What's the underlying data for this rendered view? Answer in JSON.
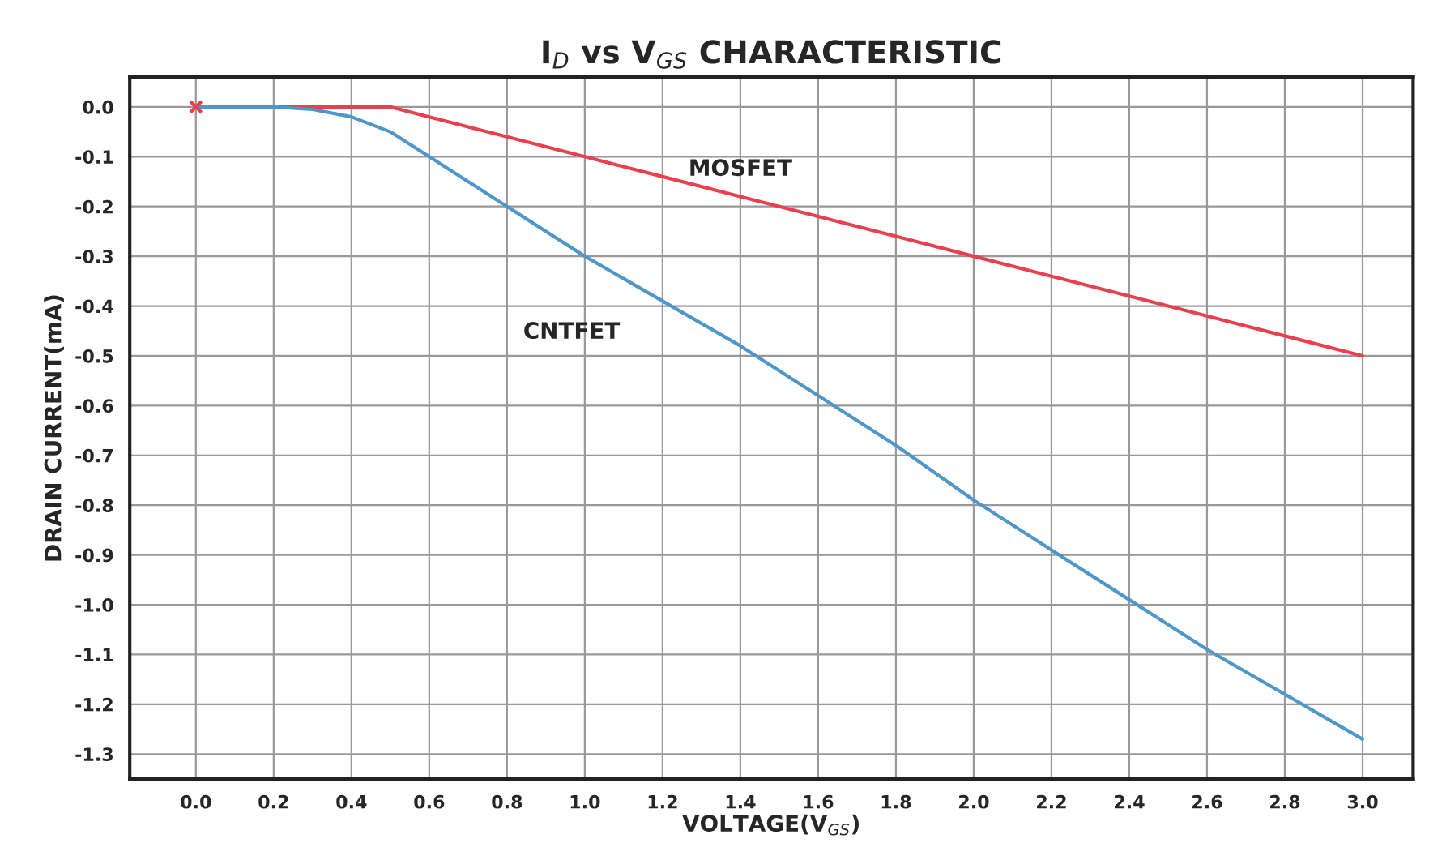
{
  "chart_data": {
    "type": "line",
    "title": "I$_{D}$ vs V$_{GS}$ CHARACTERISTIC",
    "xlabel": "VOLTAGE(V$_{GS}$)",
    "ylabel": "DRAIN CURRENT(mA)",
    "series": [
      {
        "name": "MOSFET",
        "color": "#e8404f",
        "x": [
          0,
          0.2,
          0.4,
          0.5,
          0.6,
          0.8,
          1.0,
          1.2,
          1.4,
          1.6,
          1.8,
          2.0,
          2.2,
          2.4,
          2.6,
          2.8,
          3.0
        ],
        "values": [
          0,
          0,
          0,
          0,
          -0.02,
          -0.06,
          -0.1,
          -0.14,
          -0.18,
          -0.22,
          -0.26,
          -0.3,
          -0.34,
          -0.38,
          -0.42,
          -0.46,
          -0.5
        ]
      },
      {
        "name": "CNTFET",
        "color": "#4f97c9",
        "x": [
          0,
          0.2,
          0.3,
          0.4,
          0.5,
          0.6,
          0.8,
          1.0,
          1.2,
          1.4,
          1.6,
          1.8,
          2.0,
          2.2,
          2.4,
          2.6,
          2.8,
          3.0
        ],
        "values": [
          0,
          0,
          -0.005,
          -0.02,
          -0.05,
          -0.1,
          -0.2,
          -0.3,
          -0.39,
          -0.48,
          -0.58,
          -0.68,
          -0.79,
          -0.89,
          -0.99,
          -1.09,
          -1.18,
          -1.27
        ]
      },
      {
        "type": "scatter",
        "marker": "cross",
        "color": "#e8404f",
        "x": [
          0
        ],
        "values": [
          0
        ]
      }
    ],
    "xlim": [
      -0.17,
      3.13
    ],
    "ylim": [
      -1.35,
      0.06
    ],
    "xticks": [
      {
        "value": 0,
        "label": "0.0"
      },
      0.2,
      0.4,
      0.6,
      0.8,
      {
        "value": 1,
        "label": "1.0"
      },
      1.2,
      1.4,
      1.6,
      1.8,
      {
        "value": 2,
        "label": "2.0"
      },
      2.2,
      2.4,
      2.6,
      2.8,
      {
        "value": 3,
        "label": "3.0"
      }
    ],
    "yticks": [
      {
        "value": 0,
        "label": "0.0"
      },
      -0.1,
      -0.2,
      -0.3,
      -0.4,
      -0.5,
      -0.6,
      -0.7,
      -0.8,
      -0.9,
      {
        "value": -1,
        "label": "-1.0"
      },
      -1.1,
      -1.2,
      -1.3
    ],
    "grid": true,
    "legend": false,
    "marker": "none",
    "line_style": "solid"
  }
}
